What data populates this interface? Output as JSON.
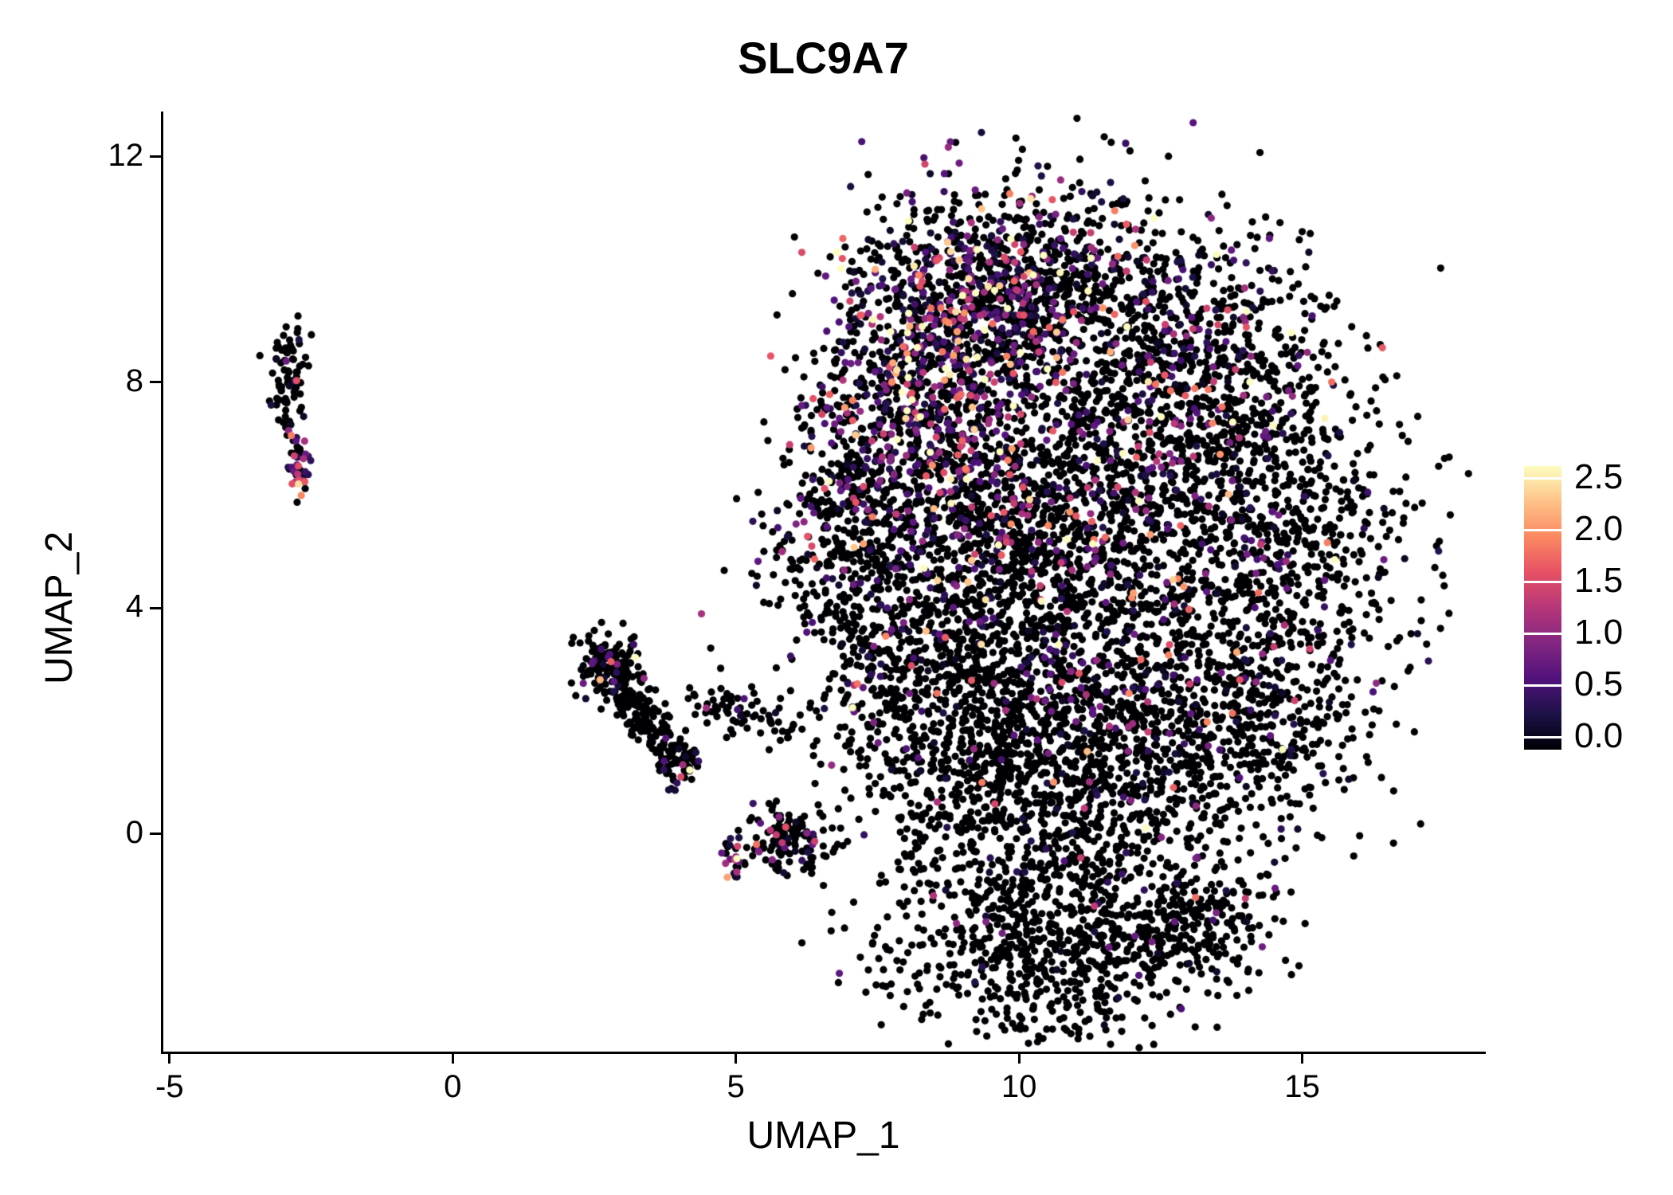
{
  "title": "SLC9A7",
  "axes": {
    "x": {
      "label": "UMAP_1",
      "range": [
        -5.11,
        18.2
      ],
      "ticks": [
        {
          "value": -5,
          "label": "-5"
        },
        {
          "value": 0,
          "label": "0"
        },
        {
          "value": 5,
          "label": "5"
        },
        {
          "value": 10,
          "label": "10"
        },
        {
          "value": 15,
          "label": "15"
        }
      ]
    },
    "y": {
      "label": "UMAP_2",
      "range": [
        -3.86,
        12.8
      ],
      "ticks": [
        {
          "value": 0,
          "label": "0"
        },
        {
          "value": 4,
          "label": "4"
        },
        {
          "value": 8,
          "label": "8"
        },
        {
          "value": 12,
          "label": "12"
        }
      ]
    }
  },
  "legend": {
    "range": [
      0,
      2.5
    ],
    "ticks": [
      {
        "value": 2.5,
        "label": "2.5"
      },
      {
        "value": 2.0,
        "label": "2.0"
      },
      {
        "value": 1.5,
        "label": "1.5"
      },
      {
        "value": 1.0,
        "label": "1.0"
      },
      {
        "value": 0.5,
        "label": "0.5"
      },
      {
        "value": 0.0,
        "label": "0.0"
      }
    ]
  },
  "colormap": [
    "#000004",
    "#1D1147",
    "#51127C",
    "#822681",
    "#B63679",
    "#E65164",
    "#FB8861",
    "#FEC287",
    "#FCFDBF"
  ],
  "chart_data": {
    "type": "scatter",
    "title": "SLC9A7",
    "xlabel": "UMAP_1",
    "ylabel": "UMAP_2",
    "xlim": [
      -5.11,
      18.2
    ],
    "ylim": [
      -3.86,
      12.8
    ],
    "color_scale": {
      "min": 0.0,
      "max": 2.5,
      "palette": "magma",
      "zero_color": "#000004"
    },
    "grid": false,
    "legend_position": "right",
    "seed": 42,
    "point_radius": 4.6,
    "clusters": [
      {
        "name": "left-satellite-top",
        "type": "gaussian",
        "cx": -2.88,
        "cy": 8.2,
        "sx": 0.16,
        "sy": 0.45,
        "n": 75,
        "expr_frac": 0.1,
        "expr_scale": 0.5
      },
      {
        "name": "left-satellite-mid",
        "type": "gaussian",
        "cx": -2.78,
        "cy": 7.15,
        "sx": 0.09,
        "sy": 0.28,
        "n": 14,
        "expr_frac": 0.2,
        "expr_scale": 0.5
      },
      {
        "name": "left-satellite-tail",
        "type": "gaussian",
        "cx": -2.72,
        "cy": 6.45,
        "sx": 0.11,
        "sy": 0.22,
        "n": 40,
        "expr_frac": 0.75,
        "expr_scale": 0.7
      },
      {
        "name": "midleft-diagonal",
        "type": "line",
        "x0": 2.55,
        "y0": 3.2,
        "x1": 4.15,
        "y1": 1.05,
        "sigma": 0.22,
        "n": 270,
        "expr_frac": 0.1,
        "expr_scale": 0.6
      },
      {
        "name": "midleft-head",
        "type": "gaussian",
        "cx": 2.75,
        "cy": 2.95,
        "sx": 0.3,
        "sy": 0.35,
        "n": 85,
        "expr_frac": 0.12,
        "expr_scale": 0.6
      },
      {
        "name": "midleft-arm",
        "type": "line",
        "x0": 4.2,
        "y0": 2.35,
        "x1": 6.25,
        "y1": 1.8,
        "sigma": 0.16,
        "n": 65,
        "expr_frac": 0.05,
        "expr_scale": 0.5
      },
      {
        "name": "small-cluster",
        "type": "gaussian",
        "cx": 5.95,
        "cy": -0.12,
        "sx": 0.42,
        "sy": 0.3,
        "n": 125,
        "expr_frac": 0.18,
        "expr_scale": 0.7
      },
      {
        "name": "small-cluster-hotspot",
        "type": "gaussian",
        "cx": 4.95,
        "cy": -0.5,
        "sx": 0.12,
        "sy": 0.18,
        "n": 26,
        "expr_frac": 0.7,
        "expr_scale": 0.9
      },
      {
        "name": "main-top-left",
        "type": "gaussian",
        "cx": 9.3,
        "cy": 9.6,
        "sx": 1.2,
        "sy": 1.0,
        "n": 750,
        "expr_frac": 0.4,
        "expr_scale": 0.75
      },
      {
        "name": "main-top-right",
        "type": "gaussian",
        "cx": 11.3,
        "cy": 9.4,
        "sx": 1.5,
        "sy": 1.1,
        "n": 650,
        "expr_frac": 0.22,
        "expr_scale": 0.7
      },
      {
        "name": "main-upper-left-hot",
        "type": "gaussian",
        "cx": 8.1,
        "cy": 7.8,
        "sx": 0.9,
        "sy": 1.0,
        "n": 520,
        "expr_frac": 0.38,
        "expr_scale": 0.8
      },
      {
        "name": "main-upper-right",
        "type": "gaussian",
        "cx": 13.3,
        "cy": 8.0,
        "sx": 1.2,
        "sy": 1.2,
        "n": 500,
        "expr_frac": 0.15,
        "expr_scale": 0.7
      },
      {
        "name": "main-center-left",
        "type": "gaussian",
        "cx": 9.3,
        "cy": 5.6,
        "sx": 1.3,
        "sy": 1.3,
        "n": 800,
        "expr_frac": 0.22,
        "expr_scale": 0.8
      },
      {
        "name": "main-center-right",
        "type": "gaussian",
        "cx": 11.8,
        "cy": 5.9,
        "sx": 1.5,
        "sy": 1.4,
        "n": 800,
        "expr_frac": 0.2,
        "expr_scale": 0.75
      },
      {
        "name": "main-right-edge",
        "type": "gaussian",
        "cx": 14.8,
        "cy": 5.2,
        "sx": 1.1,
        "sy": 1.8,
        "n": 700,
        "expr_frac": 0.1,
        "expr_scale": 0.6
      },
      {
        "name": "main-left-edge",
        "type": "gaussian",
        "cx": 7.1,
        "cy": 5.0,
        "sx": 0.8,
        "sy": 1.4,
        "n": 450,
        "expr_frac": 0.18,
        "expr_scale": 0.7
      },
      {
        "name": "main-lower-left",
        "type": "gaussian",
        "cx": 9.0,
        "cy": 2.6,
        "sx": 1.3,
        "sy": 1.3,
        "n": 750,
        "expr_frac": 0.08,
        "expr_scale": 0.6
      },
      {
        "name": "main-lower-right",
        "type": "gaussian",
        "cx": 11.6,
        "cy": 2.6,
        "sx": 1.5,
        "sy": 1.3,
        "n": 750,
        "expr_frac": 0.1,
        "expr_scale": 0.6
      },
      {
        "name": "main-lower-far-right",
        "type": "gaussian",
        "cx": 13.9,
        "cy": 1.8,
        "sx": 1.0,
        "sy": 1.0,
        "n": 350,
        "expr_frac": 0.06,
        "expr_scale": 0.5
      },
      {
        "name": "main-bottom-rim",
        "type": "gaussian",
        "cx": 10.3,
        "cy": 0.6,
        "sx": 1.6,
        "sy": 0.9,
        "n": 600,
        "expr_frac": 0.05,
        "expr_scale": 0.5
      },
      {
        "name": "bottom-bridge",
        "type": "gaussian",
        "cx": 10.6,
        "cy": -0.7,
        "sx": 1.5,
        "sy": 0.35,
        "n": 110,
        "expr_frac": 0.04,
        "expr_scale": 0.5
      },
      {
        "name": "bottom-lobe",
        "type": "gaussian",
        "cx": 10.6,
        "cy": -2.1,
        "sx": 1.5,
        "sy": 0.75,
        "n": 650,
        "expr_frac": 0.05,
        "expr_scale": 0.5
      },
      {
        "name": "bottom-lobe-right",
        "type": "gaussian",
        "cx": 13.0,
        "cy": -1.6,
        "sx": 0.8,
        "sy": 0.55,
        "n": 220,
        "expr_frac": 0.06,
        "expr_scale": 0.5
      },
      {
        "name": "stray-mid",
        "type": "gaussian",
        "cx": 4.45,
        "cy": 3.9,
        "sx": 0.04,
        "sy": 0.04,
        "n": 1,
        "expr_frac": 1.0,
        "expr_scale": 1.1
      },
      {
        "name": "stray-right",
        "type": "gaussian",
        "cx": 15.35,
        "cy": 9.3,
        "sx": 0.08,
        "sy": 0.06,
        "n": 2,
        "expr_frac": 0.3,
        "expr_scale": 0.6
      }
    ]
  }
}
